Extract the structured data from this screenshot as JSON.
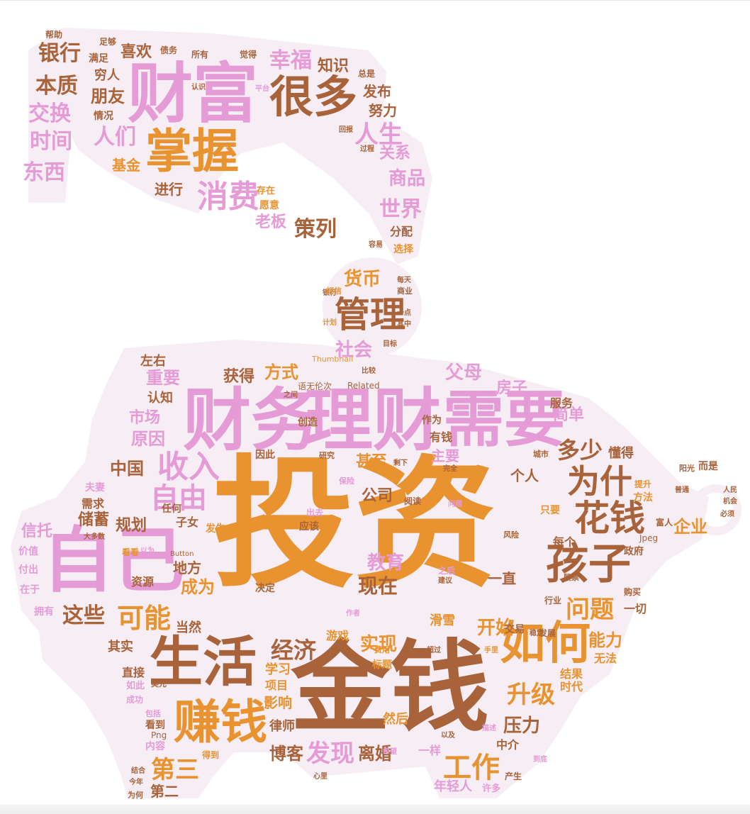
{
  "palette": {
    "orange": "#e8932f",
    "brown": "#a8633b",
    "pink": "#e59bd6",
    "shape_fill": "#f6eef4"
  },
  "words": [
    "投资",
    "金钱",
    "财务",
    "理财",
    "自己",
    "需要",
    "财富",
    "掌握",
    "很多",
    "生活",
    "如何",
    "赚钱",
    "孩子",
    "花钱",
    "管理",
    "为什",
    "消费",
    "收入",
    "自由",
    "可能",
    "问题",
    "工作",
    "第三",
    "经济",
    "发现",
    "升级",
    "人生",
    "多少",
    "人们",
    "银行",
    "本质",
    "交换",
    "东西",
    "时间",
    "幸福",
    "世界",
    "策列",
    "商品",
    "货币",
    "社会",
    "方式",
    "父母",
    "房子",
    "简单",
    "原因",
    "市场",
    "重要",
    "中国",
    "现在",
    "教育",
    "这些",
    "开始",
    "实现",
    "能力",
    "离婚",
    "博客",
    "压力",
    "企业",
    "成为",
    "地方",
    "规划",
    "储蓄",
    "信托",
    "老板",
    "知识",
    "朋友",
    "喜欢",
    "关系",
    "基金",
    "进行",
    "努力",
    "发布",
    "获得",
    "左右",
    "认知",
    "个人",
    "公司",
    "甚至",
    "主要",
    "有钱",
    "一直",
    "每个",
    "服务",
    "懂得",
    "结果",
    "时代",
    "无法",
    "影响",
    "学习",
    "项目",
    "直接",
    "其实",
    "当然",
    "年轻人",
    "第二",
    "风险",
    "决定",
    "资源",
    "存在",
    "愿意",
    "选择",
    "分配",
    "一切",
    "政府",
    "购买",
    "交易",
    "机会",
    "发展",
    "人民",
    "而是",
    "普通",
    "方法",
    "只要",
    "富人",
    "股票",
    "必须",
    "看到",
    "然后",
    "律师",
    "中介",
    "许多",
    "一样",
    "滑雪",
    "游戏",
    "作者",
    "标题",
    "Related",
    "Thumbnail",
    "Button",
    "Png",
    "Jpeg",
    "语无伦次",
    "为何",
    "今年",
    "结合",
    "夫妻",
    "需求",
    "价值",
    "付出",
    "在于",
    "拥有",
    "如此",
    "成功",
    "美元",
    "包括",
    "内容",
    "子女",
    "任何",
    "发生",
    "应该",
    "因此",
    "研究",
    "保险",
    "完全",
    "城市",
    "大多数",
    "看看",
    "以为",
    "之后",
    "建议",
    "行业",
    "稳定",
    "手里",
    "提升",
    "阳光",
    "银行",
    "帮助",
    "足够",
    "满足",
    "穷人",
    "情况",
    "所有",
    "债务",
    "觉得",
    "认识",
    "平台",
    "总是",
    "过程",
    "容易",
    "回报",
    "相信",
    "商业",
    "计划",
    "目标",
    "比较",
    "之间",
    "创造",
    "作为",
    "阅读",
    "问题",
    "出去",
    "剩下",
    "一点",
    "其中",
    "每天",
    "得到",
    "超过",
    "费用",
    "描述",
    "以及",
    "产生",
    "提高",
    "到底",
    "希望",
    "心里"
  ]
}
